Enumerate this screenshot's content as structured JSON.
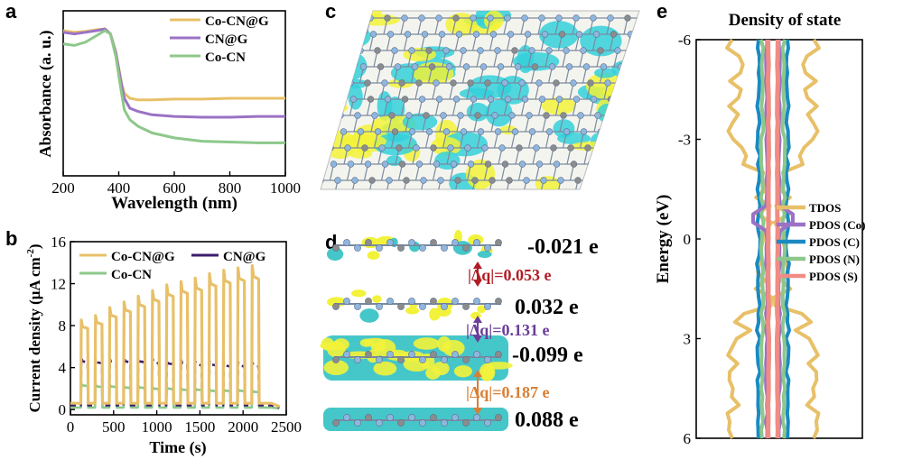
{
  "panels": {
    "a": "a",
    "b": "b",
    "c": "c",
    "d": "d",
    "e": "e"
  },
  "chart_data": [
    {
      "id": "a",
      "type": "line",
      "xlabel": "Wavelength (nm)",
      "ylabel": "Absorbance (a. u.)",
      "xlim": [
        200,
        1000
      ],
      "xticks": [
        "200",
        "400",
        "600",
        "800",
        "1000"
      ],
      "legend_position": "top-right",
      "series": [
        {
          "name": "Co-CN@G",
          "color": "#E8C068",
          "x": [
            200,
            240,
            280,
            320,
            350,
            370,
            390,
            410,
            420,
            440,
            470,
            520,
            600,
            700,
            800,
            900,
            1000
          ],
          "y": [
            0.88,
            0.87,
            0.875,
            0.885,
            0.89,
            0.86,
            0.75,
            0.56,
            0.5,
            0.47,
            0.46,
            0.46,
            0.465,
            0.465,
            0.47,
            0.47,
            0.47
          ]
        },
        {
          "name": "CN@G",
          "color": "#9B72C5",
          "x": [
            200,
            240,
            280,
            320,
            350,
            370,
            390,
            410,
            420,
            440,
            470,
            520,
            600,
            700,
            800,
            900,
            1000
          ],
          "y": [
            0.87,
            0.86,
            0.87,
            0.88,
            0.89,
            0.86,
            0.74,
            0.55,
            0.47,
            0.41,
            0.39,
            0.37,
            0.36,
            0.355,
            0.355,
            0.36,
            0.36
          ]
        },
        {
          "name": "Co-CN",
          "color": "#8DC88A",
          "x": [
            200,
            240,
            280,
            320,
            350,
            370,
            390,
            410,
            420,
            440,
            470,
            520,
            600,
            700,
            800,
            900,
            1000
          ],
          "y": [
            0.8,
            0.79,
            0.81,
            0.85,
            0.88,
            0.86,
            0.72,
            0.5,
            0.4,
            0.34,
            0.3,
            0.26,
            0.23,
            0.21,
            0.205,
            0.2,
            0.2
          ]
        }
      ]
    },
    {
      "id": "b",
      "type": "line",
      "xlabel": "Time (s)",
      "ylabel": "Current density (μA cm⁻²)",
      "ylabel_main": "Current density (μA cm",
      "ylabel_sup": "-2",
      "ylabel_close": ")",
      "xlim": [
        0,
        2500
      ],
      "ylim": [
        -0.5,
        16
      ],
      "xticks": [
        "0",
        "500",
        "1000",
        "1500",
        "2000",
        "2500"
      ],
      "yticks": [
        "0",
        "4",
        "8",
        "12",
        "16"
      ],
      "legend_position": "top",
      "on_start_times": [
        120,
        285,
        450,
        615,
        780,
        945,
        1110,
        1275,
        1440,
        1605,
        1770,
        1935,
        2100
      ],
      "on_duration": 80,
      "series": [
        {
          "name": "Co-CN@G",
          "color": "#E8C068",
          "on_levels": [
            7.9,
            8.3,
            9.0,
            9.5,
            10.0,
            10.5,
            11.0,
            11.3,
            11.6,
            12.0,
            12.3,
            12.5,
            12.7
          ],
          "off_level": 0.6
        },
        {
          "name": "CN@G",
          "color": "#3D1D6E",
          "on_levels": [
            4.6,
            4.5,
            4.5,
            4.6,
            4.6,
            4.5,
            4.4,
            4.4,
            4.3,
            4.3,
            4.2,
            4.2,
            4.2
          ],
          "off_level": 0.4
        },
        {
          "name": "Co-CN",
          "color": "#8DC88A",
          "on_levels": [
            2.3,
            2.2,
            2.2,
            2.1,
            2.1,
            2.0,
            2.0,
            1.9,
            1.9,
            1.8,
            1.8,
            1.8,
            1.7
          ],
          "off_level": 0.2
        }
      ]
    },
    {
      "id": "e",
      "type": "line",
      "title": "Density of state",
      "ylabel": "Energy (eV)",
      "ylim": [
        -6,
        6
      ],
      "yticks": [
        "-6",
        "-3",
        "0",
        "3",
        "6"
      ],
      "legend_position": "center-right",
      "series": [
        {
          "name": "TDOS",
          "color": "#E8C068"
        },
        {
          "name": "PDOS (Co)",
          "color": "#9B72C5"
        },
        {
          "name": "PDOS (C)",
          "color": "#1A8AC2"
        },
        {
          "name": "PDOS (N)",
          "color": "#8DC88A"
        },
        {
          "name": "PDOS (S)",
          "color": "#F08C84"
        }
      ]
    }
  ],
  "charge_panel": {
    "layers": [
      {
        "charge": "-0.021 e"
      },
      {
        "charge": "0.032 e"
      },
      {
        "charge": "-0.099 e"
      },
      {
        "charge": "0.088 e"
      }
    ],
    "transfers": [
      {
        "label": "|Δq|=0.053 e",
        "color": "#B01C24"
      },
      {
        "label": "|Δq|=0.131 e",
        "color": "#6A3D9A"
      },
      {
        "label": "|Δq|=0.187 e",
        "color": "#D97F35"
      }
    ]
  }
}
